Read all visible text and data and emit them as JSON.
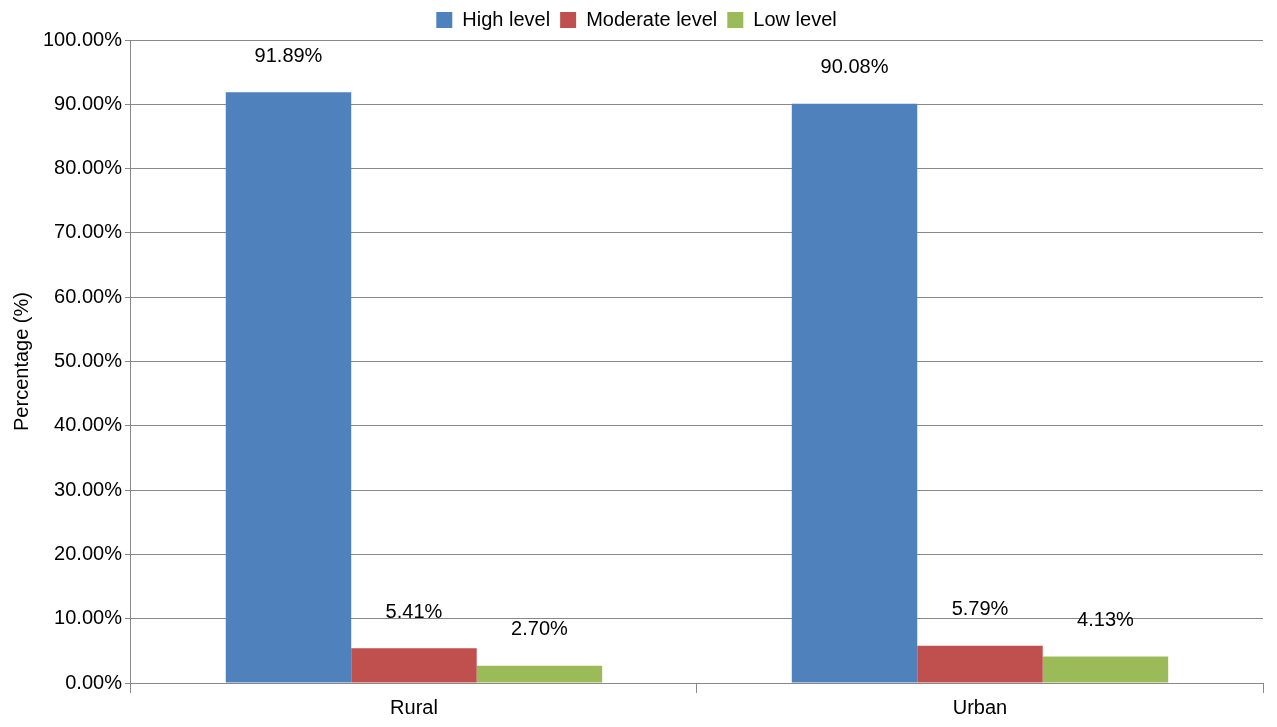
{
  "chart_data": {
    "type": "bar",
    "ylabel": "Percentage (%)",
    "categories": [
      "Rural",
      "Urban"
    ],
    "series": [
      {
        "name": "High level",
        "color": "#4f81bd",
        "values": [
          91.89,
          90.08
        ],
        "value_labels": [
          "91.89%",
          "90.08%"
        ]
      },
      {
        "name": "Moderate level",
        "color": "#c0504d",
        "values": [
          5.41,
          5.79
        ],
        "value_labels": [
          "5.41%",
          "5.79%"
        ]
      },
      {
        "name": "Low level",
        "color": "#9bbb59",
        "values": [
          2.7,
          4.13
        ],
        "value_labels": [
          "2.70%",
          "4.13%"
        ]
      }
    ],
    "ylim": [
      0,
      100
    ],
    "yticks": [
      {
        "value": 0,
        "label": "0.00%"
      },
      {
        "value": 10,
        "label": "10.00%"
      },
      {
        "value": 20,
        "label": "20.00%"
      },
      {
        "value": 30,
        "label": "30.00%"
      },
      {
        "value": 40,
        "label": "40.00%"
      },
      {
        "value": 50,
        "label": "50.00%"
      },
      {
        "value": 60,
        "label": "60.00%"
      },
      {
        "value": 70,
        "label": "70.00%"
      },
      {
        "value": 80,
        "label": "80.00%"
      },
      {
        "value": 90,
        "label": "90.00%"
      },
      {
        "value": 100,
        "label": "100.00%"
      }
    ],
    "grid": "y",
    "legend": "top"
  }
}
